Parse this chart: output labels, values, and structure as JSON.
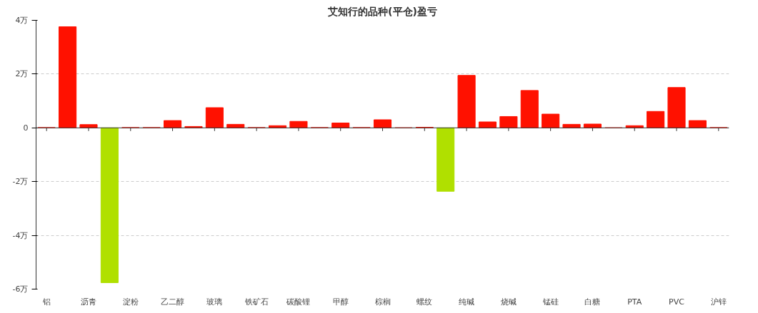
{
  "chart_data": {
    "type": "bar",
    "title": "艾知行的品种(平仓)盈亏",
    "categories": [
      "铝",
      null,
      "沥青",
      null,
      "淀粉",
      null,
      "乙二醇",
      null,
      "玻璃",
      null,
      "铁矿石",
      null,
      "碳酸锂",
      null,
      "甲醇",
      null,
      "棕榈",
      null,
      "螺纹",
      null,
      "纯碱",
      null,
      "烧碱",
      null,
      "锰硅",
      null,
      "白糖",
      null,
      "PTA",
      null,
      "PVC",
      null,
      "沪锌"
    ],
    "values": [
      0.01,
      3.76,
      0.12,
      -5.76,
      0.01,
      0.01,
      0.27,
      0.05,
      0.75,
      0.13,
      0.01,
      0.08,
      0.24,
      0.01,
      0.18,
      0.01,
      0.3,
      0,
      0.02,
      -2.36,
      1.95,
      0.22,
      0.42,
      1.39,
      0.51,
      0.13,
      0.14,
      0,
      0.08,
      0.61,
      1.5,
      0.27,
      0.01
    ],
    "colors": [
      "#ff1100",
      "#ff1100",
      "#ff1100",
      "#b0e000",
      "#ff1100",
      "#ff1100",
      "#ff1100",
      "#ff1100",
      "#ff1100",
      "#ff1100",
      "#ff1100",
      "#ff1100",
      "#ff1100",
      "#ff1100",
      "#ff1100",
      "#ff1100",
      "#ff1100",
      "#ff1100",
      "#ff1100",
      "#b0e000",
      "#ff1100",
      "#ff1100",
      "#ff1100",
      "#ff1100",
      "#ff1100",
      "#ff1100",
      "#ff1100",
      "#ff1100",
      "#ff1100",
      "#ff1100",
      "#ff1100",
      "#ff1100",
      "#ff1100"
    ],
    "ylim": [
      -6,
      4
    ],
    "yticks": [
      {
        "value": -6,
        "label": "-6万"
      },
      {
        "value": -4,
        "label": "-4万"
      },
      {
        "value": -2,
        "label": "-2万"
      },
      0,
      {
        "value": 2,
        "label": "2万"
      },
      {
        "value": 4,
        "label": "4万"
      }
    ],
    "grid": "y"
  }
}
